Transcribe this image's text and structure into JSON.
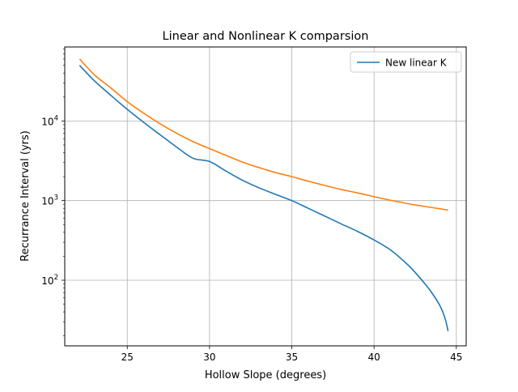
{
  "chart_data": {
    "type": "line",
    "title": "Linear and Nonlinear K comparsion",
    "xlabel": "Hollow Slope (degrees)",
    "ylabel": "Recurrance Interval (yrs)",
    "xlim": [
      21.2,
      45.6
    ],
    "ylim": [
      15,
      85000
    ],
    "yscale": "log",
    "grid": true,
    "legend_position": "top-right",
    "x_ticks": [
      25,
      30,
      35,
      40,
      45
    ],
    "x_tick_labels": [
      "25",
      "30",
      "35",
      "40",
      "45"
    ],
    "y_ticks": [
      100,
      1000,
      10000
    ],
    "y_tick_labels": [
      {
        "base": "10",
        "exp": "2"
      },
      {
        "base": "10",
        "exp": "3"
      },
      {
        "base": "10",
        "exp": "4"
      }
    ],
    "series": [
      {
        "name": "New linear K",
        "color": "#1f77b4",
        "x": [
          22.1,
          23,
          24,
          25,
          26,
          27,
          28,
          29,
          30,
          31,
          32,
          33,
          34,
          35,
          36,
          37,
          38,
          39,
          40,
          41,
          42,
          42.5,
          43,
          43.5,
          44,
          44.3,
          44.5
        ],
        "y": [
          50000,
          32000,
          21000,
          14000,
          9600,
          6700,
          4700,
          3400,
          3100,
          2350,
          1800,
          1450,
          1200,
          1000,
          800,
          640,
          510,
          410,
          320,
          240,
          160,
          125,
          95,
          70,
          48,
          34,
          23
        ]
      },
      {
        "name": "",
        "color": "#ff7f0e",
        "x": [
          22.1,
          23,
          24,
          25,
          26,
          27,
          28,
          29,
          30,
          31,
          32,
          33,
          34,
          35,
          36,
          37,
          38,
          39,
          40,
          41,
          42,
          43,
          44,
          44.5
        ],
        "y": [
          60000,
          38000,
          26000,
          17500,
          12500,
          9200,
          7000,
          5500,
          4500,
          3700,
          3050,
          2600,
          2250,
          2000,
          1750,
          1550,
          1380,
          1250,
          1120,
          1010,
          920,
          850,
          790,
          760
        ]
      }
    ]
  }
}
